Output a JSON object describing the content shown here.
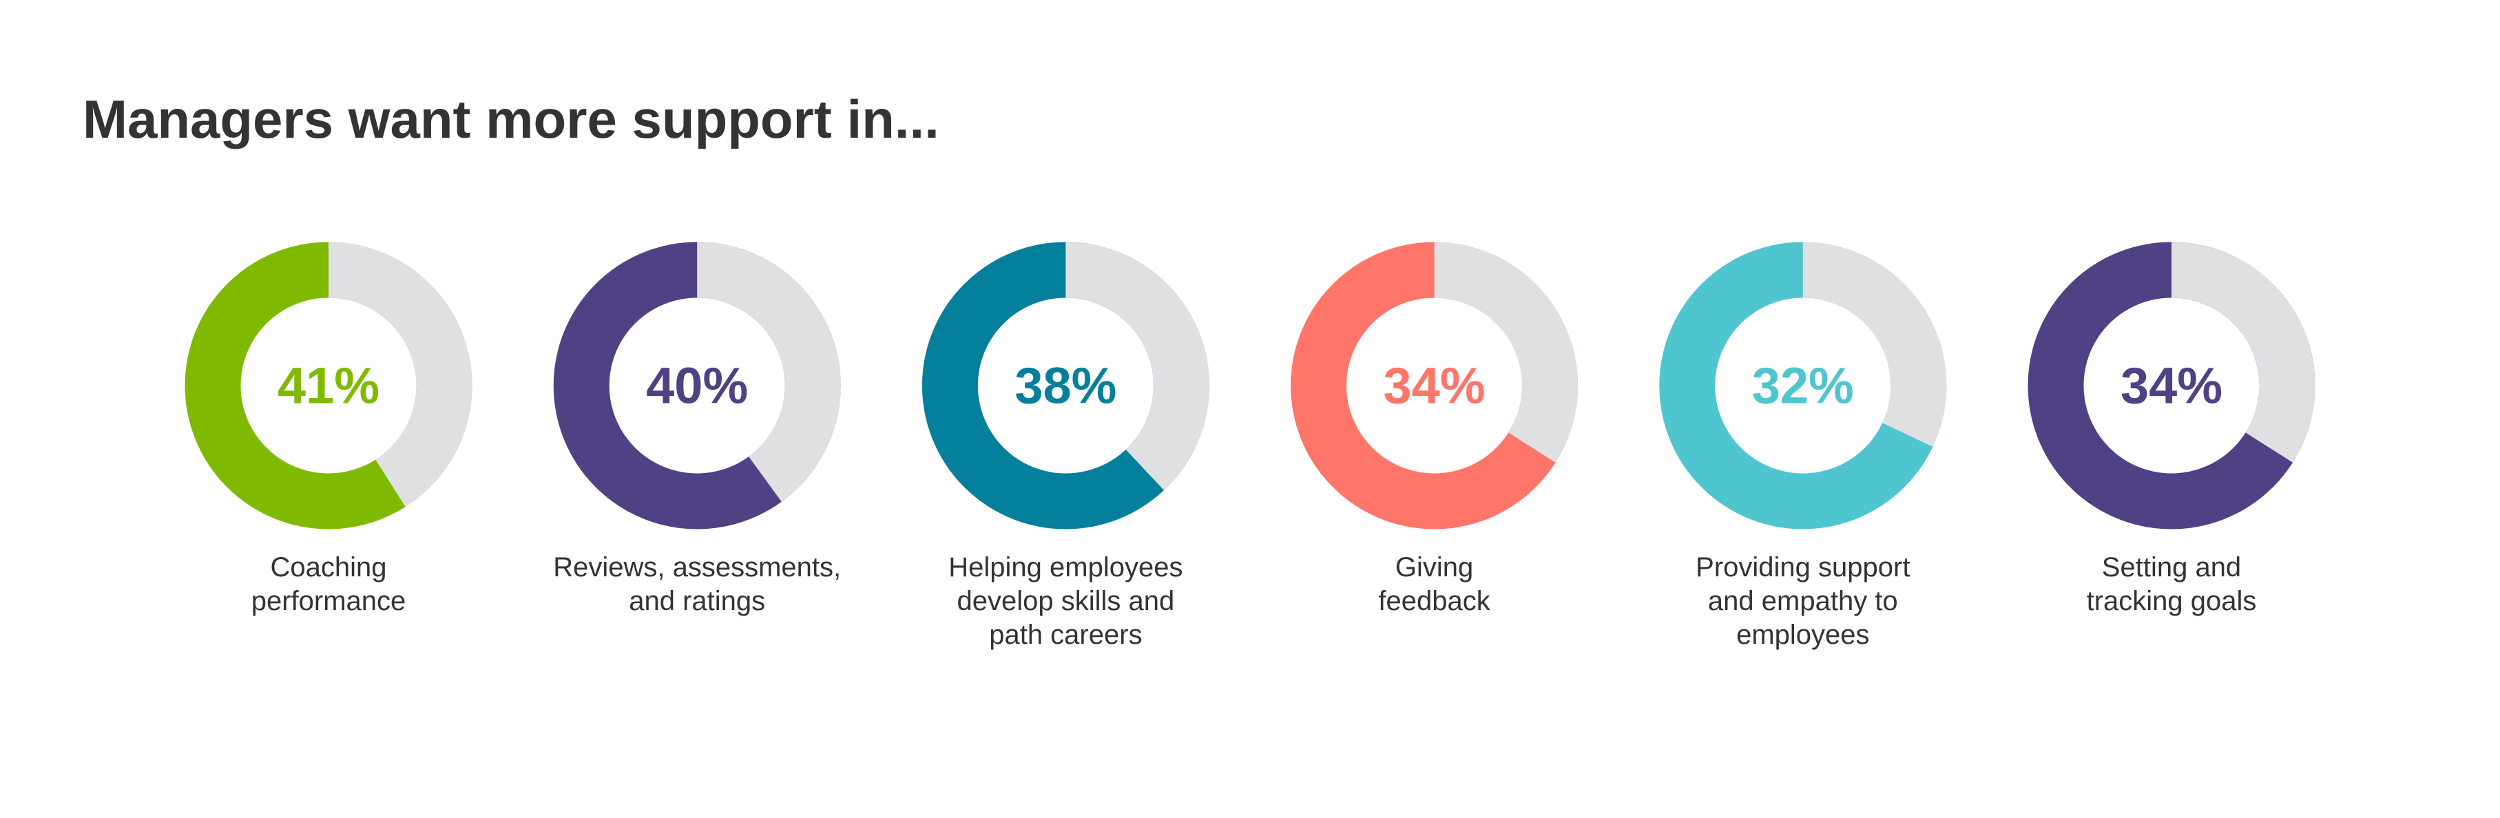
{
  "chart_data": {
    "type": "donut",
    "title": "Managers want more support in...",
    "categories": [
      "Coaching\nperformance",
      "Reviews, assessments,\nand ratings",
      "Helping employees\ndevelop skills and\npath careers",
      "Giving\nfeedback",
      "Providing support\nand empathy to\nemployees",
      "Setting and\ntracking goals"
    ],
    "values": [
      41,
      40,
      38,
      34,
      32,
      34
    ],
    "value_labels": [
      "41%",
      "40%",
      "38%",
      "34%",
      "32%",
      "34%"
    ],
    "colors": [
      "#7fba00",
      "#4f4184",
      "#047f9c",
      "#ff7569",
      "#4fc5d0",
      "#4f4184"
    ],
    "value_color": "#e0e0e2"
  }
}
